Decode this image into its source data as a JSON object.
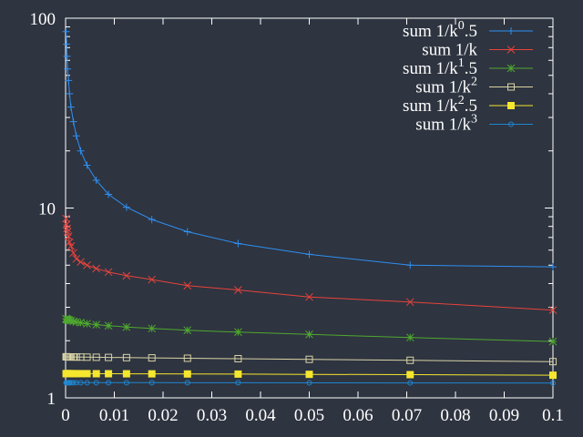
{
  "chart_data": {
    "type": "line",
    "xlim": [
      0,
      0.1
    ],
    "ylim": [
      1,
      100
    ],
    "yscale": "log",
    "grid": false,
    "legend_position": "top-right",
    "x_ticks": [
      "0",
      "0.01",
      "0.02",
      "0.03",
      "0.04",
      "0.05",
      "0.06",
      "0.07",
      "0.08",
      "0.09",
      "0.1"
    ],
    "y_ticks": [
      "1",
      "10",
      "100"
    ],
    "x": [
      0.0001,
      0.0002,
      0.0003,
      0.0004,
      0.0006,
      0.0008,
      0.0011,
      0.0016,
      0.0022,
      0.0031,
      0.0044,
      0.0063,
      0.0088,
      0.0125,
      0.0177,
      0.025,
      0.0354,
      0.05,
      0.0707,
      0.1
    ],
    "series": [
      {
        "label_parts": [
          "sum 1/k",
          "0",
          ".5"
        ],
        "color": "#2f8ff0",
        "marker": "plus",
        "values": [
          85,
          73,
          63,
          54,
          47,
          40,
          34,
          28.5,
          24,
          20,
          16.8,
          14,
          11.8,
          10.1,
          8.7,
          7.5,
          6.5,
          5.7,
          5.0,
          4.9
        ]
      },
      {
        "label_parts": [
          "sum 1/k",
          "",
          ""
        ],
        "color": "#e8433c",
        "marker": "cross",
        "values": [
          8.8,
          8.2,
          7.8,
          7.5,
          7.1,
          6.6,
          6.3,
          5.8,
          5.4,
          5.2,
          5.0,
          4.8,
          4.6,
          4.4,
          4.2,
          3.9,
          3.7,
          3.4,
          3.2,
          2.9
        ]
      },
      {
        "label_parts": [
          "sum 1/k",
          "1",
          ".5"
        ],
        "color": "#4fa82f",
        "marker": "star",
        "values": [
          2.61,
          2.6,
          2.59,
          2.58,
          2.57,
          2.56,
          2.55,
          2.53,
          2.51,
          2.49,
          2.46,
          2.43,
          2.4,
          2.36,
          2.32,
          2.27,
          2.22,
          2.16,
          2.08,
          1.98
        ]
      },
      {
        "label_parts": [
          "sum 1/k",
          "2",
          ""
        ],
        "color": "#d9d3a6",
        "marker": "square-open",
        "values": [
          1.645,
          1.645,
          1.644,
          1.644,
          1.643,
          1.643,
          1.642,
          1.642,
          1.641,
          1.64,
          1.638,
          1.636,
          1.633,
          1.629,
          1.624,
          1.617,
          1.608,
          1.595,
          1.577,
          1.552
        ]
      },
      {
        "label_parts": [
          "sum 1/k",
          "2",
          ".5"
        ],
        "color": "#f5e62e",
        "marker": "square-filled",
        "values": [
          1.341,
          1.341,
          1.341,
          1.341,
          1.341,
          1.341,
          1.341,
          1.341,
          1.341,
          1.341,
          1.341,
          1.34,
          1.34,
          1.339,
          1.338,
          1.336,
          1.334,
          1.33,
          1.325,
          1.316
        ]
      },
      {
        "label_parts": [
          "sum 1/k",
          "3",
          ""
        ],
        "color": "#1f86d0",
        "marker": "circle-open",
        "values": [
          1.202,
          1.202,
          1.202,
          1.202,
          1.202,
          1.202,
          1.202,
          1.202,
          1.202,
          1.202,
          1.202,
          1.202,
          1.202,
          1.202,
          1.202,
          1.201,
          1.201,
          1.2,
          1.199,
          1.197
        ]
      }
    ]
  }
}
